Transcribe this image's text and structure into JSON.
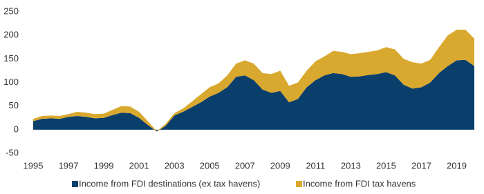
{
  "chart_data": {
    "type": "stacked_area",
    "x": [
      1995,
      1995.5,
      1996,
      1996.5,
      1997,
      1997.5,
      1998,
      1998.5,
      1999,
      1999.5,
      2000,
      2000.5,
      2001,
      2001.5,
      2002,
      2002.5,
      2003,
      2003.5,
      2004,
      2004.5,
      2005,
      2005.5,
      2006,
      2006.5,
      2007,
      2007.5,
      2008,
      2008.5,
      2009,
      2009.5,
      2010,
      2010.5,
      2011,
      2011.5,
      2012,
      2012.5,
      2013,
      2013.5,
      2014,
      2014.5,
      2015,
      2015.5,
      2016,
      2016.5,
      2017,
      2017.5,
      2018,
      2018.5,
      2019,
      2019.5,
      2020
    ],
    "series": [
      {
        "name": "Income from FDI destinations (ex tax havens)",
        "color": "#0b3f6b",
        "values": [
          18,
          23,
          24,
          23,
          27,
          29,
          27,
          24,
          25,
          31,
          36,
          35,
          25,
          10,
          -4,
          8,
          30,
          38,
          48,
          58,
          70,
          78,
          90,
          112,
          115,
          105,
          85,
          78,
          82,
          58,
          65,
          90,
          105,
          115,
          120,
          118,
          112,
          113,
          116,
          118,
          122,
          115,
          95,
          87,
          90,
          100,
          120,
          135,
          147,
          148,
          135
        ]
      },
      {
        "name": "Income from FDI tax havens",
        "color": "#d9a82e",
        "values": [
          5,
          6,
          6,
          6,
          6,
          9,
          9,
          9,
          9,
          11,
          14,
          14,
          13,
          8,
          1,
          4,
          5,
          7,
          12,
          17,
          20,
          20,
          25,
          28,
          32,
          35,
          35,
          40,
          43,
          35,
          35,
          35,
          40,
          40,
          47,
          47,
          48,
          49,
          49,
          50,
          53,
          55,
          55,
          56,
          50,
          48,
          55,
          65,
          65,
          64,
          58
        ]
      }
    ],
    "xlim": [
      1995,
      2020
    ],
    "xticks": [
      1995,
      1997,
      1999,
      2001,
      2003,
      2005,
      2007,
      2009,
      2011,
      2013,
      2015,
      2017,
      2019
    ],
    "ylim": [
      -50,
      250
    ],
    "yticks": [
      -50,
      0,
      50,
      100,
      150,
      200,
      250
    ]
  }
}
